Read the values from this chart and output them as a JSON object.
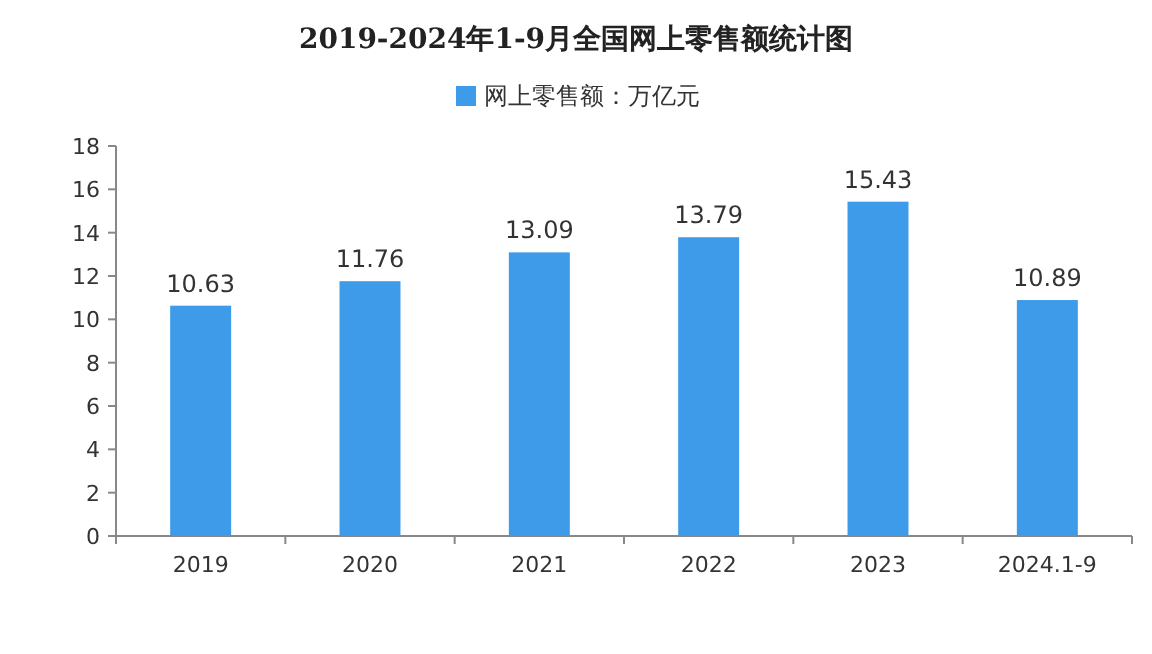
{
  "chart_data": {
    "type": "bar",
    "title": "2019-2024年1-9月全国网上零售额统计图",
    "categories": [
      "2019",
      "2020",
      "2021",
      "2022",
      "2023",
      "2024.1-9"
    ],
    "series": [
      {
        "name": "网上零售额：万亿元",
        "color": "#3d9be9",
        "values": [
          10.63,
          11.76,
          13.09,
          13.79,
          15.43,
          10.89
        ]
      }
    ],
    "data_labels": true,
    "ylim": [
      0,
      18
    ],
    "yticks": [
      0,
      2,
      4,
      6,
      8,
      10,
      12,
      14,
      16,
      18
    ],
    "grid": false,
    "legend": "top"
  }
}
